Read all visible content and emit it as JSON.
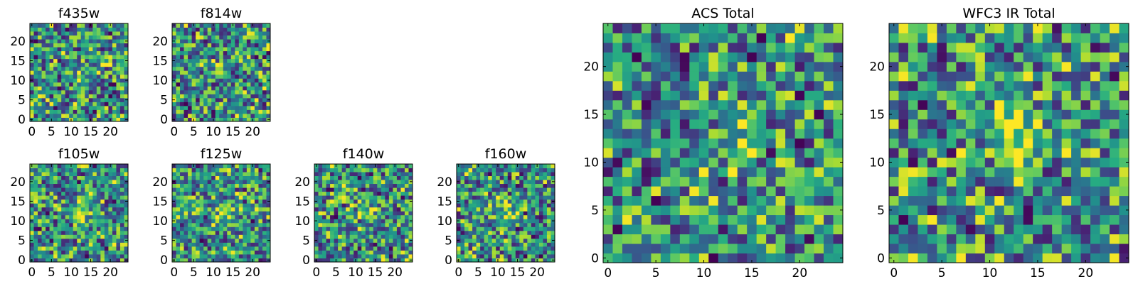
{
  "chart_data": [
    {
      "type": "heatmap",
      "title": "f435w",
      "x_ticks": [
        "0",
        "5",
        "10",
        "15",
        "20"
      ],
      "y_ticks": [
        "0",
        "5",
        "10",
        "15",
        "20"
      ],
      "xlim": [
        -0.5,
        24.5
      ],
      "ylim": [
        -0.5,
        24.5
      ],
      "grid_size": 25,
      "seed": 11,
      "peak": 0.15,
      "colormap": "viridis",
      "grid": false
    },
    {
      "type": "heatmap",
      "title": "f814w",
      "x_ticks": [
        "0",
        "5",
        "10",
        "15",
        "20"
      ],
      "y_ticks": [
        "0",
        "5",
        "10",
        "15",
        "20"
      ],
      "xlim": [
        -0.5,
        24.5
      ],
      "ylim": [
        -0.5,
        24.5
      ],
      "grid_size": 25,
      "seed": 23,
      "peak": 0.1,
      "colormap": "viridis",
      "grid": false
    },
    {
      "type": "heatmap",
      "title": "f105w",
      "x_ticks": [
        "0",
        "5",
        "10",
        "15",
        "20"
      ],
      "y_ticks": [
        "0",
        "5",
        "10",
        "15",
        "20"
      ],
      "xlim": [
        -0.5,
        24.5
      ],
      "ylim": [
        -0.5,
        24.5
      ],
      "grid_size": 25,
      "seed": 37,
      "peak": 0.35,
      "colormap": "viridis",
      "grid": false
    },
    {
      "type": "heatmap",
      "title": "f125w",
      "x_ticks": [
        "0",
        "5",
        "10",
        "15",
        "20"
      ],
      "y_ticks": [
        "0",
        "5",
        "10",
        "15",
        "20"
      ],
      "xlim": [
        -0.5,
        24.5
      ],
      "ylim": [
        -0.5,
        24.5
      ],
      "grid_size": 25,
      "seed": 41,
      "peak": 0.2,
      "colormap": "viridis",
      "grid": false
    },
    {
      "type": "heatmap",
      "title": "f140w",
      "x_ticks": [
        "0",
        "5",
        "10",
        "15",
        "20"
      ],
      "y_ticks": [
        "0",
        "5",
        "10",
        "15",
        "20"
      ],
      "xlim": [
        -0.5,
        24.5
      ],
      "ylim": [
        -0.5,
        24.5
      ],
      "grid_size": 25,
      "seed": 53,
      "peak": 0.3,
      "colormap": "viridis",
      "grid": false
    },
    {
      "type": "heatmap",
      "title": "f160w",
      "x_ticks": [
        "0",
        "5",
        "10",
        "15",
        "20"
      ],
      "y_ticks": [
        "0",
        "5",
        "10",
        "15",
        "20"
      ],
      "xlim": [
        -0.5,
        24.5
      ],
      "ylim": [
        -0.5,
        24.5
      ],
      "grid_size": 25,
      "seed": 67,
      "peak": 0.3,
      "colormap": "viridis",
      "grid": false
    },
    {
      "type": "heatmap",
      "title": "ACS Total",
      "x_ticks": [
        "0",
        "5",
        "10",
        "15",
        "20"
      ],
      "y_ticks": [
        "0",
        "5",
        "10",
        "15",
        "20"
      ],
      "xlim": [
        -0.5,
        24.5
      ],
      "ylim": [
        -0.5,
        24.5
      ],
      "grid_size": 25,
      "seed": 71,
      "peak": 0.25,
      "colormap": "viridis",
      "grid": false
    },
    {
      "type": "heatmap",
      "title": "WFC3 IR Total",
      "x_ticks": [
        "0",
        "5",
        "10",
        "15",
        "20"
      ],
      "y_ticks": [
        "0",
        "5",
        "10",
        "15",
        "20"
      ],
      "xlim": [
        -0.5,
        24.5
      ],
      "ylim": [
        -0.5,
        24.5
      ],
      "grid_size": 25,
      "seed": 89,
      "peak": 0.45,
      "colormap": "viridis",
      "grid": false
    }
  ]
}
